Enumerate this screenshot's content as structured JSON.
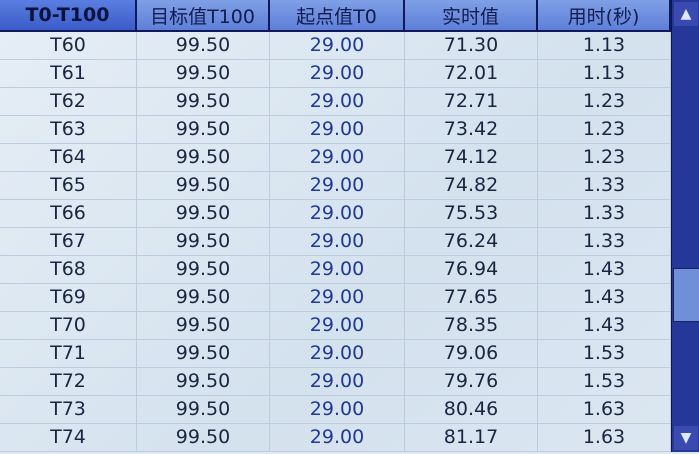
{
  "headers": [
    "T0-T100",
    "目标值T100",
    "起点值T0",
    "实时值",
    "用时(秒)"
  ],
  "rows": [
    [
      "T60",
      "99.50",
      "29.00",
      "71.30",
      "1.13"
    ],
    [
      "T61",
      "99.50",
      "29.00",
      "72.01",
      "1.13"
    ],
    [
      "T62",
      "99.50",
      "29.00",
      "72.71",
      "1.23"
    ],
    [
      "T63",
      "99.50",
      "29.00",
      "73.42",
      "1.23"
    ],
    [
      "T64",
      "99.50",
      "29.00",
      "74.12",
      "1.23"
    ],
    [
      "T65",
      "99.50",
      "29.00",
      "74.82",
      "1.33"
    ],
    [
      "T66",
      "99.50",
      "29.00",
      "75.53",
      "1.33"
    ],
    [
      "T67",
      "99.50",
      "29.00",
      "76.24",
      "1.33"
    ],
    [
      "T68",
      "99.50",
      "29.00",
      "76.94",
      "1.43"
    ],
    [
      "T69",
      "99.50",
      "29.00",
      "77.65",
      "1.43"
    ],
    [
      "T70",
      "99.50",
      "29.00",
      "78.35",
      "1.43"
    ],
    [
      "T71",
      "99.50",
      "29.00",
      "79.06",
      "1.53"
    ],
    [
      "T72",
      "99.50",
      "29.00",
      "79.76",
      "1.53"
    ],
    [
      "T73",
      "99.50",
      "29.00",
      "80.46",
      "1.63"
    ],
    [
      "T74",
      "99.50",
      "29.00",
      "81.17",
      "1.63"
    ]
  ],
  "scrollbar": {
    "up_icon": "▲",
    "down_icon": "▼",
    "position_fraction": 0.6
  }
}
